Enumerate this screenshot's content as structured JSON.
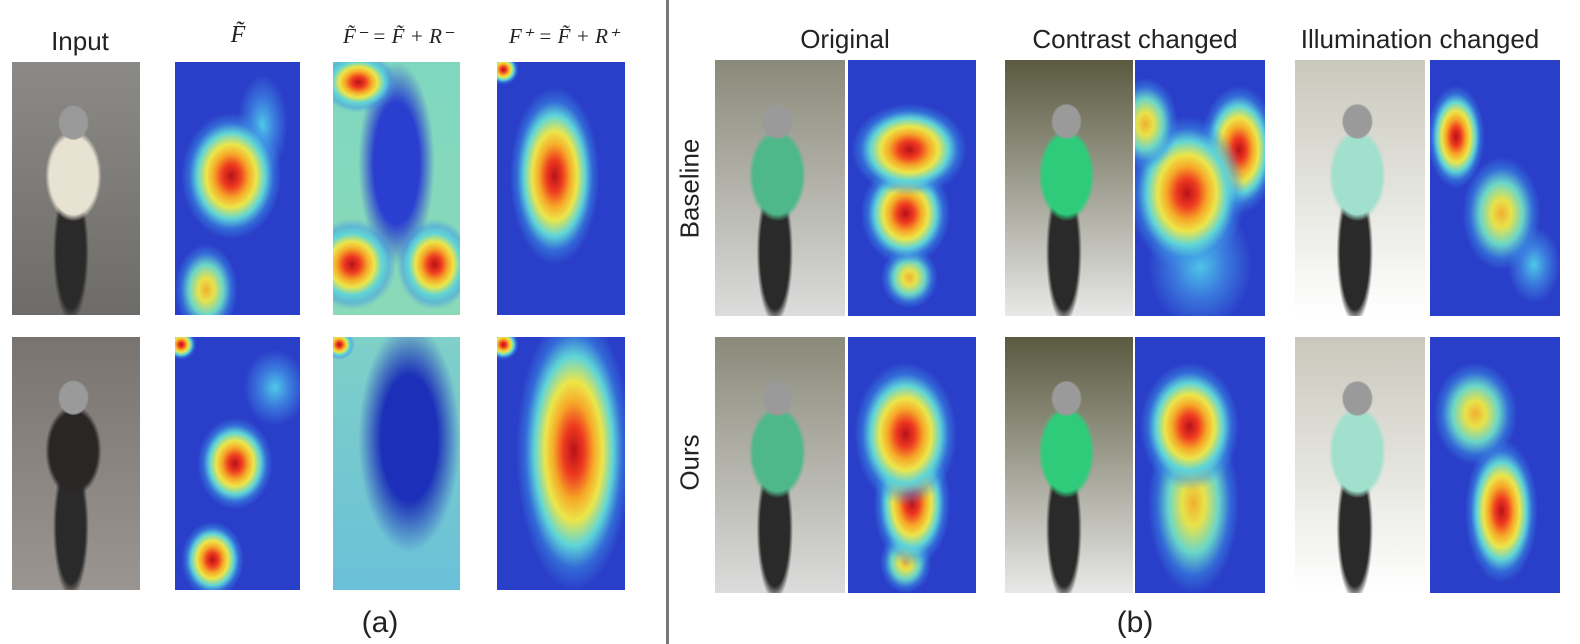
{
  "panel_a": {
    "columns": [
      "Input",
      "F̃",
      "F̃⁻ = F̃ + R⁻",
      "F⁺ = F̃ + R⁺"
    ],
    "caption": "(a)"
  },
  "panel_b": {
    "columns": [
      "Original",
      "Contrast changed",
      "Illumination changed"
    ],
    "rows": [
      "Baseline",
      "Ours"
    ],
    "caption": "(b)"
  }
}
